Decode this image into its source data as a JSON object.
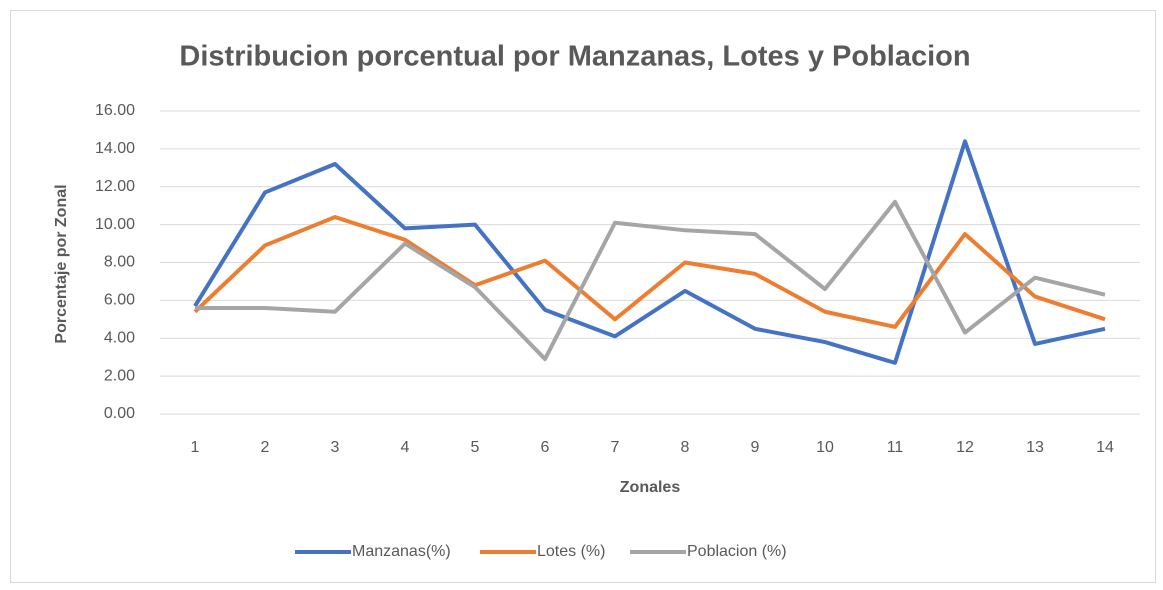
{
  "chart_data": {
    "type": "line",
    "title": "Distribucion porcentual por Manzanas, Lotes y Poblacion",
    "x_label": "Zonales",
    "y_label": "Porcentaje por Zonal",
    "categories": [
      "1",
      "2",
      "3",
      "4",
      "5",
      "6",
      "7",
      "8",
      "9",
      "10",
      "11",
      "12",
      "13",
      "14"
    ],
    "series": [
      {
        "name": "Manzanas(%)",
        "color": "#4472c4",
        "values": [
          5.7,
          11.7,
          13.2,
          9.8,
          10.0,
          5.5,
          4.1,
          6.5,
          4.5,
          3.8,
          2.7,
          14.4,
          3.7,
          4.5
        ]
      },
      {
        "name": "Lotes (%)",
        "color": "#ed7d31",
        "values": [
          5.4,
          8.9,
          10.4,
          9.2,
          6.8,
          8.1,
          5.0,
          8.0,
          7.4,
          5.4,
          4.6,
          9.5,
          6.2,
          5.0
        ]
      },
      {
        "name": "Poblacion (%)",
        "color": "#a5a5a5",
        "values": [
          5.6,
          5.6,
          5.4,
          9.0,
          6.7,
          2.9,
          10.1,
          9.7,
          9.5,
          6.6,
          11.2,
          4.3,
          7.2,
          6.3
        ]
      }
    ],
    "ylim": [
      0,
      16
    ],
    "yticks": [
      {
        "value": 0,
        "label": "0.00"
      },
      {
        "value": 2,
        "label": "2.00"
      },
      {
        "value": 4,
        "label": "4.00"
      },
      {
        "value": 6,
        "label": "6.00"
      },
      {
        "value": 8,
        "label": "8.00"
      },
      {
        "value": 10,
        "label": "10.00"
      },
      {
        "value": 12,
        "label": "12.00"
      },
      {
        "value": 14,
        "label": "14.00"
      },
      {
        "value": 16,
        "label": "16.00"
      }
    ],
    "grid": true,
    "legend": "bottom"
  }
}
